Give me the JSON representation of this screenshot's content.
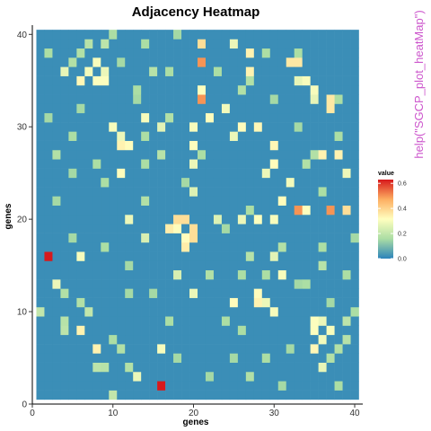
{
  "chart_data": {
    "type": "heatmap",
    "title": "Adjacency Heatmap",
    "xlabel": "genes",
    "ylabel": "genes",
    "n": 40,
    "xlim": [
      0,
      41
    ],
    "ylim": [
      0,
      41
    ],
    "x_ticks": [
      0,
      10,
      20,
      30,
      40
    ],
    "y_ticks": [
      0,
      10,
      20,
      30,
      40
    ],
    "x_tick_labels": [
      "0",
      "10",
      "20",
      "30",
      "40"
    ],
    "y_tick_labels": [
      "0",
      "10",
      "20",
      "30",
      "40"
    ],
    "base_value": 0.02,
    "legend": {
      "title": "value",
      "ticks": [
        0.0,
        0.2,
        0.4,
        0.6
      ],
      "tick_labels": [
        "0.0",
        "0.2",
        "0.4",
        "0.6"
      ],
      "range": [
        0,
        0.63
      ],
      "placement": "right"
    },
    "color_scale": [
      "#2b83ba",
      "#abdda4",
      "#ffffbf",
      "#fdae61",
      "#d7191c"
    ],
    "cells": [
      [
        2,
        16,
        0.63
      ],
      [
        16,
        2,
        0.63
      ],
      [
        21,
        37,
        0.5
      ],
      [
        21,
        33,
        0.5
      ],
      [
        33,
        21,
        0.5
      ],
      [
        37,
        21,
        0.5
      ],
      [
        18,
        20,
        0.38
      ],
      [
        19,
        20,
        0.38
      ],
      [
        20,
        18,
        0.38
      ],
      [
        20,
        19,
        0.38
      ],
      [
        19,
        17,
        0.35
      ],
      [
        17,
        19,
        0.35
      ],
      [
        19,
        18,
        0.32
      ],
      [
        18,
        19,
        0.32
      ],
      [
        21,
        39,
        0.38
      ],
      [
        39,
        21,
        0.38
      ],
      [
        32,
        37,
        0.36
      ],
      [
        33,
        37,
        0.36
      ],
      [
        37,
        32,
        0.36
      ],
      [
        37,
        33,
        0.36
      ],
      [
        6,
        35,
        0.33
      ],
      [
        35,
        6,
        0.33
      ],
      [
        8,
        35,
        0.31
      ],
      [
        35,
        8,
        0.31
      ],
      [
        8,
        6,
        0.34
      ],
      [
        6,
        8,
        0.34
      ],
      [
        6,
        16,
        0.3
      ],
      [
        16,
        6,
        0.3
      ],
      [
        9,
        36,
        0.28
      ],
      [
        36,
        9,
        0.28
      ],
      [
        4,
        36,
        0.27
      ],
      [
        36,
        4,
        0.27
      ],
      [
        11,
        29,
        0.28
      ],
      [
        29,
        11,
        0.28
      ],
      [
        11,
        28,
        0.3
      ],
      [
        28,
        11,
        0.3
      ],
      [
        14,
        31,
        0.3
      ],
      [
        31,
        14,
        0.3
      ],
      [
        28,
        12,
        0.32
      ],
      [
        12,
        28,
        0.32
      ],
      [
        12,
        20,
        0.28
      ],
      [
        20,
        12,
        0.28
      ],
      [
        16,
        30,
        0.26
      ],
      [
        30,
        16,
        0.26
      ],
      [
        20,
        30,
        0.3
      ],
      [
        30,
        20,
        0.3
      ],
      [
        20,
        28,
        0.31
      ],
      [
        28,
        20,
        0.31
      ],
      [
        22,
        31,
        0.32
      ],
      [
        31,
        22,
        0.32
      ],
      [
        25,
        29,
        0.3
      ],
      [
        29,
        25,
        0.3
      ],
      [
        27,
        38,
        0.34
      ],
      [
        38,
        27,
        0.34
      ],
      [
        29,
        25,
        0.28
      ],
      [
        25,
        29,
        0.28
      ],
      [
        30,
        28,
        0.33
      ],
      [
        28,
        30,
        0.33
      ],
      [
        32,
        24,
        0.29
      ],
      [
        24,
        32,
        0.29
      ],
      [
        34,
        21,
        0.31
      ],
      [
        21,
        34,
        0.31
      ],
      [
        36,
        27,
        0.34
      ],
      [
        27,
        36,
        0.34
      ],
      [
        39,
        25,
        0.28
      ],
      [
        25,
        39,
        0.28
      ],
      [
        35,
        34,
        0.3
      ],
      [
        34,
        35,
        0.3
      ],
      [
        33,
        35,
        0.27
      ],
      [
        35,
        33,
        0.27
      ],
      [
        3,
        13,
        0.28
      ],
      [
        13,
        3,
        0.28
      ],
      [
        25,
        11,
        0.32
      ],
      [
        11,
        25,
        0.32
      ],
      [
        28,
        11,
        0.34
      ],
      [
        11,
        28,
        0.34
      ],
      [
        30,
        10,
        0.3
      ],
      [
        10,
        30,
        0.3
      ],
      [
        26,
        20,
        0.28
      ],
      [
        20,
        26,
        0.28
      ],
      [
        35,
        6,
        0.33
      ],
      [
        6,
        35,
        0.33
      ],
      [
        35,
        9,
        0.31
      ],
      [
        9,
        35,
        0.31
      ],
      [
        37,
        8,
        0.3
      ],
      [
        8,
        37,
        0.3
      ],
      [
        36,
        7,
        0.29
      ],
      [
        7,
        36,
        0.29
      ],
      [
        29,
        25,
        0.28
      ],
      [
        26,
        30,
        0.32
      ],
      [
        30,
        26,
        0.32
      ],
      [
        14,
        18,
        0.24
      ],
      [
        18,
        14,
        0.24
      ],
      [
        23,
        20,
        0.25
      ],
      [
        20,
        23,
        0.25
      ],
      [
        7,
        10,
        0.2
      ],
      [
        10,
        7,
        0.2
      ],
      [
        1,
        10,
        0.2
      ],
      [
        10,
        1,
        0.2
      ],
      [
        4,
        9,
        0.18
      ],
      [
        9,
        4,
        0.18
      ],
      [
        6,
        11,
        0.17
      ],
      [
        11,
        6,
        0.17
      ],
      [
        8,
        4,
        0.19
      ],
      [
        4,
        8,
        0.19
      ],
      [
        10,
        7,
        0.16
      ],
      [
        12,
        12,
        0.15
      ],
      [
        2,
        38,
        0.16
      ],
      [
        38,
        2,
        0.16
      ],
      [
        5,
        37,
        0.17
      ],
      [
        37,
        5,
        0.17
      ],
      [
        7,
        39,
        0.18
      ],
      [
        39,
        7,
        0.18
      ],
      [
        9,
        39,
        0.19
      ],
      [
        39,
        9,
        0.19
      ],
      [
        10,
        40,
        0.16
      ],
      [
        40,
        10,
        0.16
      ],
      [
        11,
        37,
        0.15
      ],
      [
        37,
        11,
        0.15
      ],
      [
        14,
        26,
        0.16
      ],
      [
        26,
        14,
        0.16
      ],
      [
        16,
        27,
        0.18
      ],
      [
        27,
        16,
        0.18
      ],
      [
        15,
        12,
        0.15
      ],
      [
        12,
        15,
        0.15
      ],
      [
        17,
        9,
        0.16
      ],
      [
        9,
        17,
        0.16
      ],
      [
        18,
        5,
        0.15
      ],
      [
        5,
        18,
        0.15
      ],
      [
        12,
        4,
        0.17
      ],
      [
        4,
        12,
        0.17
      ],
      [
        22,
        14,
        0.17
      ],
      [
        14,
        22,
        0.17
      ],
      [
        24,
        9,
        0.16
      ],
      [
        9,
        24,
        0.16
      ],
      [
        25,
        5,
        0.15
      ],
      [
        5,
        25,
        0.15
      ],
      [
        27,
        3,
        0.17
      ],
      [
        3,
        27,
        0.17
      ],
      [
        29,
        14,
        0.16
      ],
      [
        14,
        29,
        0.16
      ],
      [
        31,
        17,
        0.17
      ],
      [
        17,
        31,
        0.17
      ],
      [
        32,
        6,
        0.15
      ],
      [
        6,
        32,
        0.15
      ],
      [
        34,
        13,
        0.16
      ],
      [
        13,
        34,
        0.16
      ],
      [
        36,
        15,
        0.18
      ],
      [
        15,
        36,
        0.18
      ],
      [
        38,
        6,
        0.17
      ],
      [
        6,
        38,
        0.17
      ],
      [
        39,
        14,
        0.16
      ],
      [
        14,
        39,
        0.16
      ],
      [
        40,
        18,
        0.15
      ],
      [
        18,
        40,
        0.15
      ],
      [
        23,
        36,
        0.16
      ],
      [
        36,
        23,
        0.16
      ],
      [
        26,
        34,
        0.17
      ],
      [
        34,
        26,
        0.17
      ],
      [
        29,
        38,
        0.16
      ],
      [
        38,
        29,
        0.16
      ],
      [
        33,
        30,
        0.15
      ],
      [
        30,
        33,
        0.15
      ],
      [
        35,
        27,
        0.17
      ],
      [
        27,
        35,
        0.17
      ],
      [
        38,
        33,
        0.16
      ],
      [
        33,
        38,
        0.16
      ],
      [
        19,
        24,
        0.15
      ],
      [
        24,
        19,
        0.15
      ],
      [
        21,
        27,
        0.16
      ],
      [
        27,
        21,
        0.16
      ],
      [
        3,
        22,
        0.15
      ],
      [
        22,
        3,
        0.15
      ],
      [
        5,
        29,
        0.16
      ],
      [
        29,
        5,
        0.16
      ],
      [
        2,
        31,
        0.15
      ],
      [
        31,
        2,
        0.15
      ],
      [
        8,
        26,
        0.16
      ],
      [
        26,
        8,
        0.16
      ],
      [
        13,
        33,
        0.15
      ],
      [
        33,
        13,
        0.15
      ],
      [
        17,
        36,
        0.16
      ],
      [
        36,
        17,
        0.16
      ]
    ]
  },
  "side_note": {
    "text": "help(\"SGCP_plot_heatMap\")",
    "color": "#cc55cc"
  }
}
